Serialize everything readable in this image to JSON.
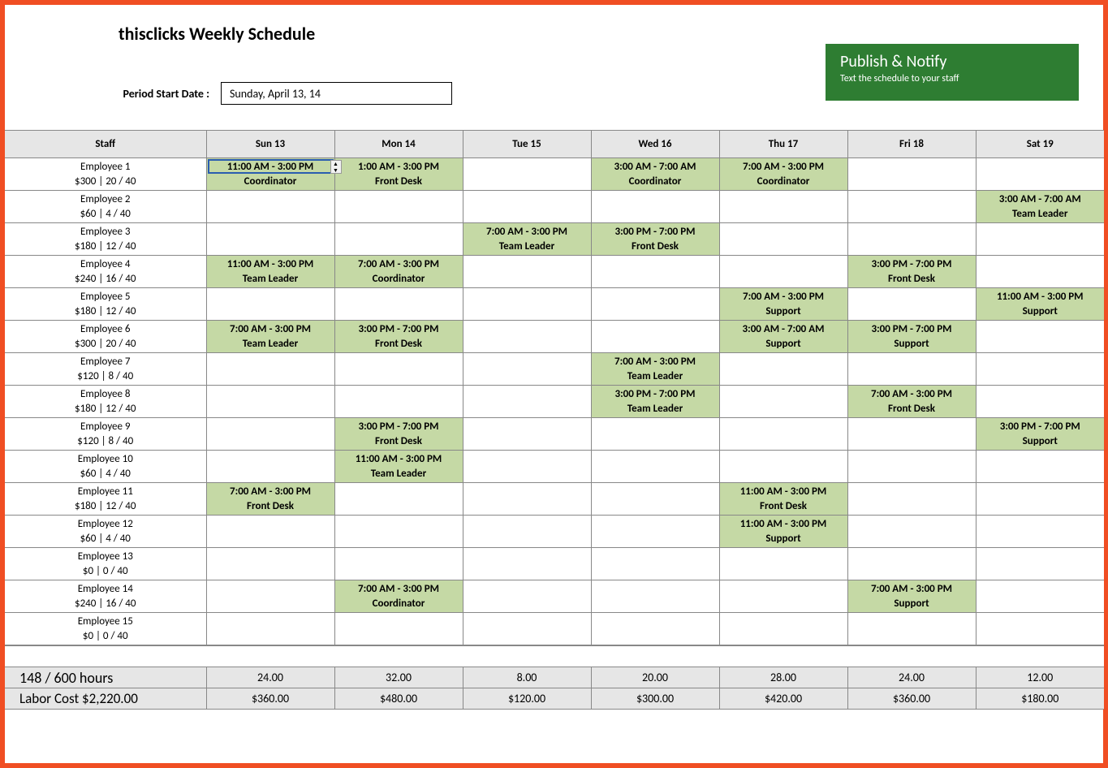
{
  "title": "thisclicks Weekly Schedule",
  "period_label": "Period Start Date :",
  "period_value": "Sunday, April 13, 14",
  "publish": {
    "title": "Publish & Notify",
    "sub": "Text the schedule to your staff"
  },
  "colors": {
    "border": "#f04e23",
    "shift_bg": "#c5d9a5",
    "header_bg": "#e6e6e6",
    "publish_bg": "#2e7d32",
    "grid_border": "#888888",
    "select_border": "#2a5db0"
  },
  "columns": [
    "Staff",
    "Sun 13",
    "Mon 14",
    "Tue 15",
    "Wed 16",
    "Thu 17",
    "Fri 18",
    "Sat 19"
  ],
  "employees": [
    {
      "name": "Employee 1",
      "stats": "$300 | 20 / 40",
      "shifts": {
        "0": {
          "time": "11:00 AM - 3:00 PM",
          "role": "Coordinator",
          "selected": true
        },
        "1": {
          "time": "1:00 AM - 3:00 PM",
          "role": "Front Desk",
          "trim": true
        },
        "3": {
          "time": "3:00 AM - 7:00 AM",
          "role": "Coordinator"
        },
        "4": {
          "time": "7:00 AM - 3:00 PM",
          "role": "Coordinator"
        }
      }
    },
    {
      "name": "Employee 2",
      "stats": "$60 | 4 / 40",
      "shifts": {
        "6": {
          "time": "3:00 AM - 7:00 AM",
          "role": "Team Leader"
        }
      }
    },
    {
      "name": "Employee 3",
      "stats": "$180 | 12 / 40",
      "shifts": {
        "2": {
          "time": "7:00 AM - 3:00 PM",
          "role": "Team Leader"
        },
        "3": {
          "time": "3:00 PM - 7:00 PM",
          "role": "Front Desk"
        }
      }
    },
    {
      "name": "Employee 4",
      "stats": "$240 | 16 / 40",
      "shifts": {
        "0": {
          "time": "11:00 AM - 3:00 PM",
          "role": "Team Leader"
        },
        "1": {
          "time": "7:00 AM - 3:00 PM",
          "role": "Coordinator"
        },
        "5": {
          "time": "3:00 PM - 7:00 PM",
          "role": "Front Desk"
        }
      }
    },
    {
      "name": "Employee 5",
      "stats": "$180 | 12 / 40",
      "shifts": {
        "4": {
          "time": "7:00 AM - 3:00 PM",
          "role": "Support"
        },
        "6": {
          "time": "11:00 AM - 3:00 PM",
          "role": "Support"
        }
      }
    },
    {
      "name": "Employee 6",
      "stats": "$300 | 20 / 40",
      "shifts": {
        "0": {
          "time": "7:00 AM - 3:00 PM",
          "role": "Team Leader"
        },
        "1": {
          "time": "3:00 PM - 7:00 PM",
          "role": "Front Desk"
        },
        "4": {
          "time": "3:00 AM - 7:00 AM",
          "role": "Support"
        },
        "5": {
          "time": "3:00 PM - 7:00 PM",
          "role": "Support"
        }
      }
    },
    {
      "name": "Employee 7",
      "stats": "$120 | 8 / 40",
      "shifts": {
        "3": {
          "time": "7:00 AM - 3:00 PM",
          "role": "Team Leader"
        }
      }
    },
    {
      "name": "Employee 8",
      "stats": "$180 | 12 / 40",
      "shifts": {
        "3": {
          "time": "3:00 PM - 7:00 PM",
          "role": "Team Leader"
        },
        "5": {
          "time": "7:00 AM - 3:00 PM",
          "role": "Front Desk"
        }
      }
    },
    {
      "name": "Employee 9",
      "stats": "$120 | 8 / 40",
      "shifts": {
        "1": {
          "time": "3:00 PM - 7:00 PM",
          "role": "Front Desk"
        },
        "6": {
          "time": "3:00 PM - 7:00 PM",
          "role": "Support"
        }
      }
    },
    {
      "name": "Employee 10",
      "stats": "$60 | 4 / 40",
      "shifts": {
        "1": {
          "time": "11:00 AM - 3:00 PM",
          "role": "Team Leader"
        }
      }
    },
    {
      "name": "Employee 11",
      "stats": "$180 | 12 / 40",
      "shifts": {
        "0": {
          "time": "7:00 AM - 3:00 PM",
          "role": "Front Desk"
        },
        "4": {
          "time": "11:00 AM - 3:00 PM",
          "role": "Front Desk"
        }
      }
    },
    {
      "name": "Employee 12",
      "stats": "$60 | 4 / 40",
      "shifts": {
        "4": {
          "time": "11:00 AM - 3:00 PM",
          "role": "Support"
        }
      }
    },
    {
      "name": "Employee 13",
      "stats": "$0 | 0 / 40",
      "shifts": {}
    },
    {
      "name": "Employee 14",
      "stats": "$240 | 16 / 40",
      "shifts": {
        "1": {
          "time": "7:00 AM - 3:00 PM",
          "role": "Coordinator"
        },
        "5": {
          "time": "7:00 AM - 3:00 PM",
          "role": "Support"
        }
      }
    },
    {
      "name": "Employee 15",
      "stats": "$0 | 0 / 40",
      "shifts": {}
    }
  ],
  "footer": {
    "hours_label": "148 / 600 hours",
    "hours": [
      "24.00",
      "32.00",
      "8.00",
      "20.00",
      "28.00",
      "24.00",
      "12.00"
    ],
    "cost_label": "Labor Cost $2,220.00",
    "costs": [
      "$360.00",
      "$480.00",
      "$120.00",
      "$300.00",
      "$420.00",
      "$360.00",
      "$180.00"
    ]
  }
}
